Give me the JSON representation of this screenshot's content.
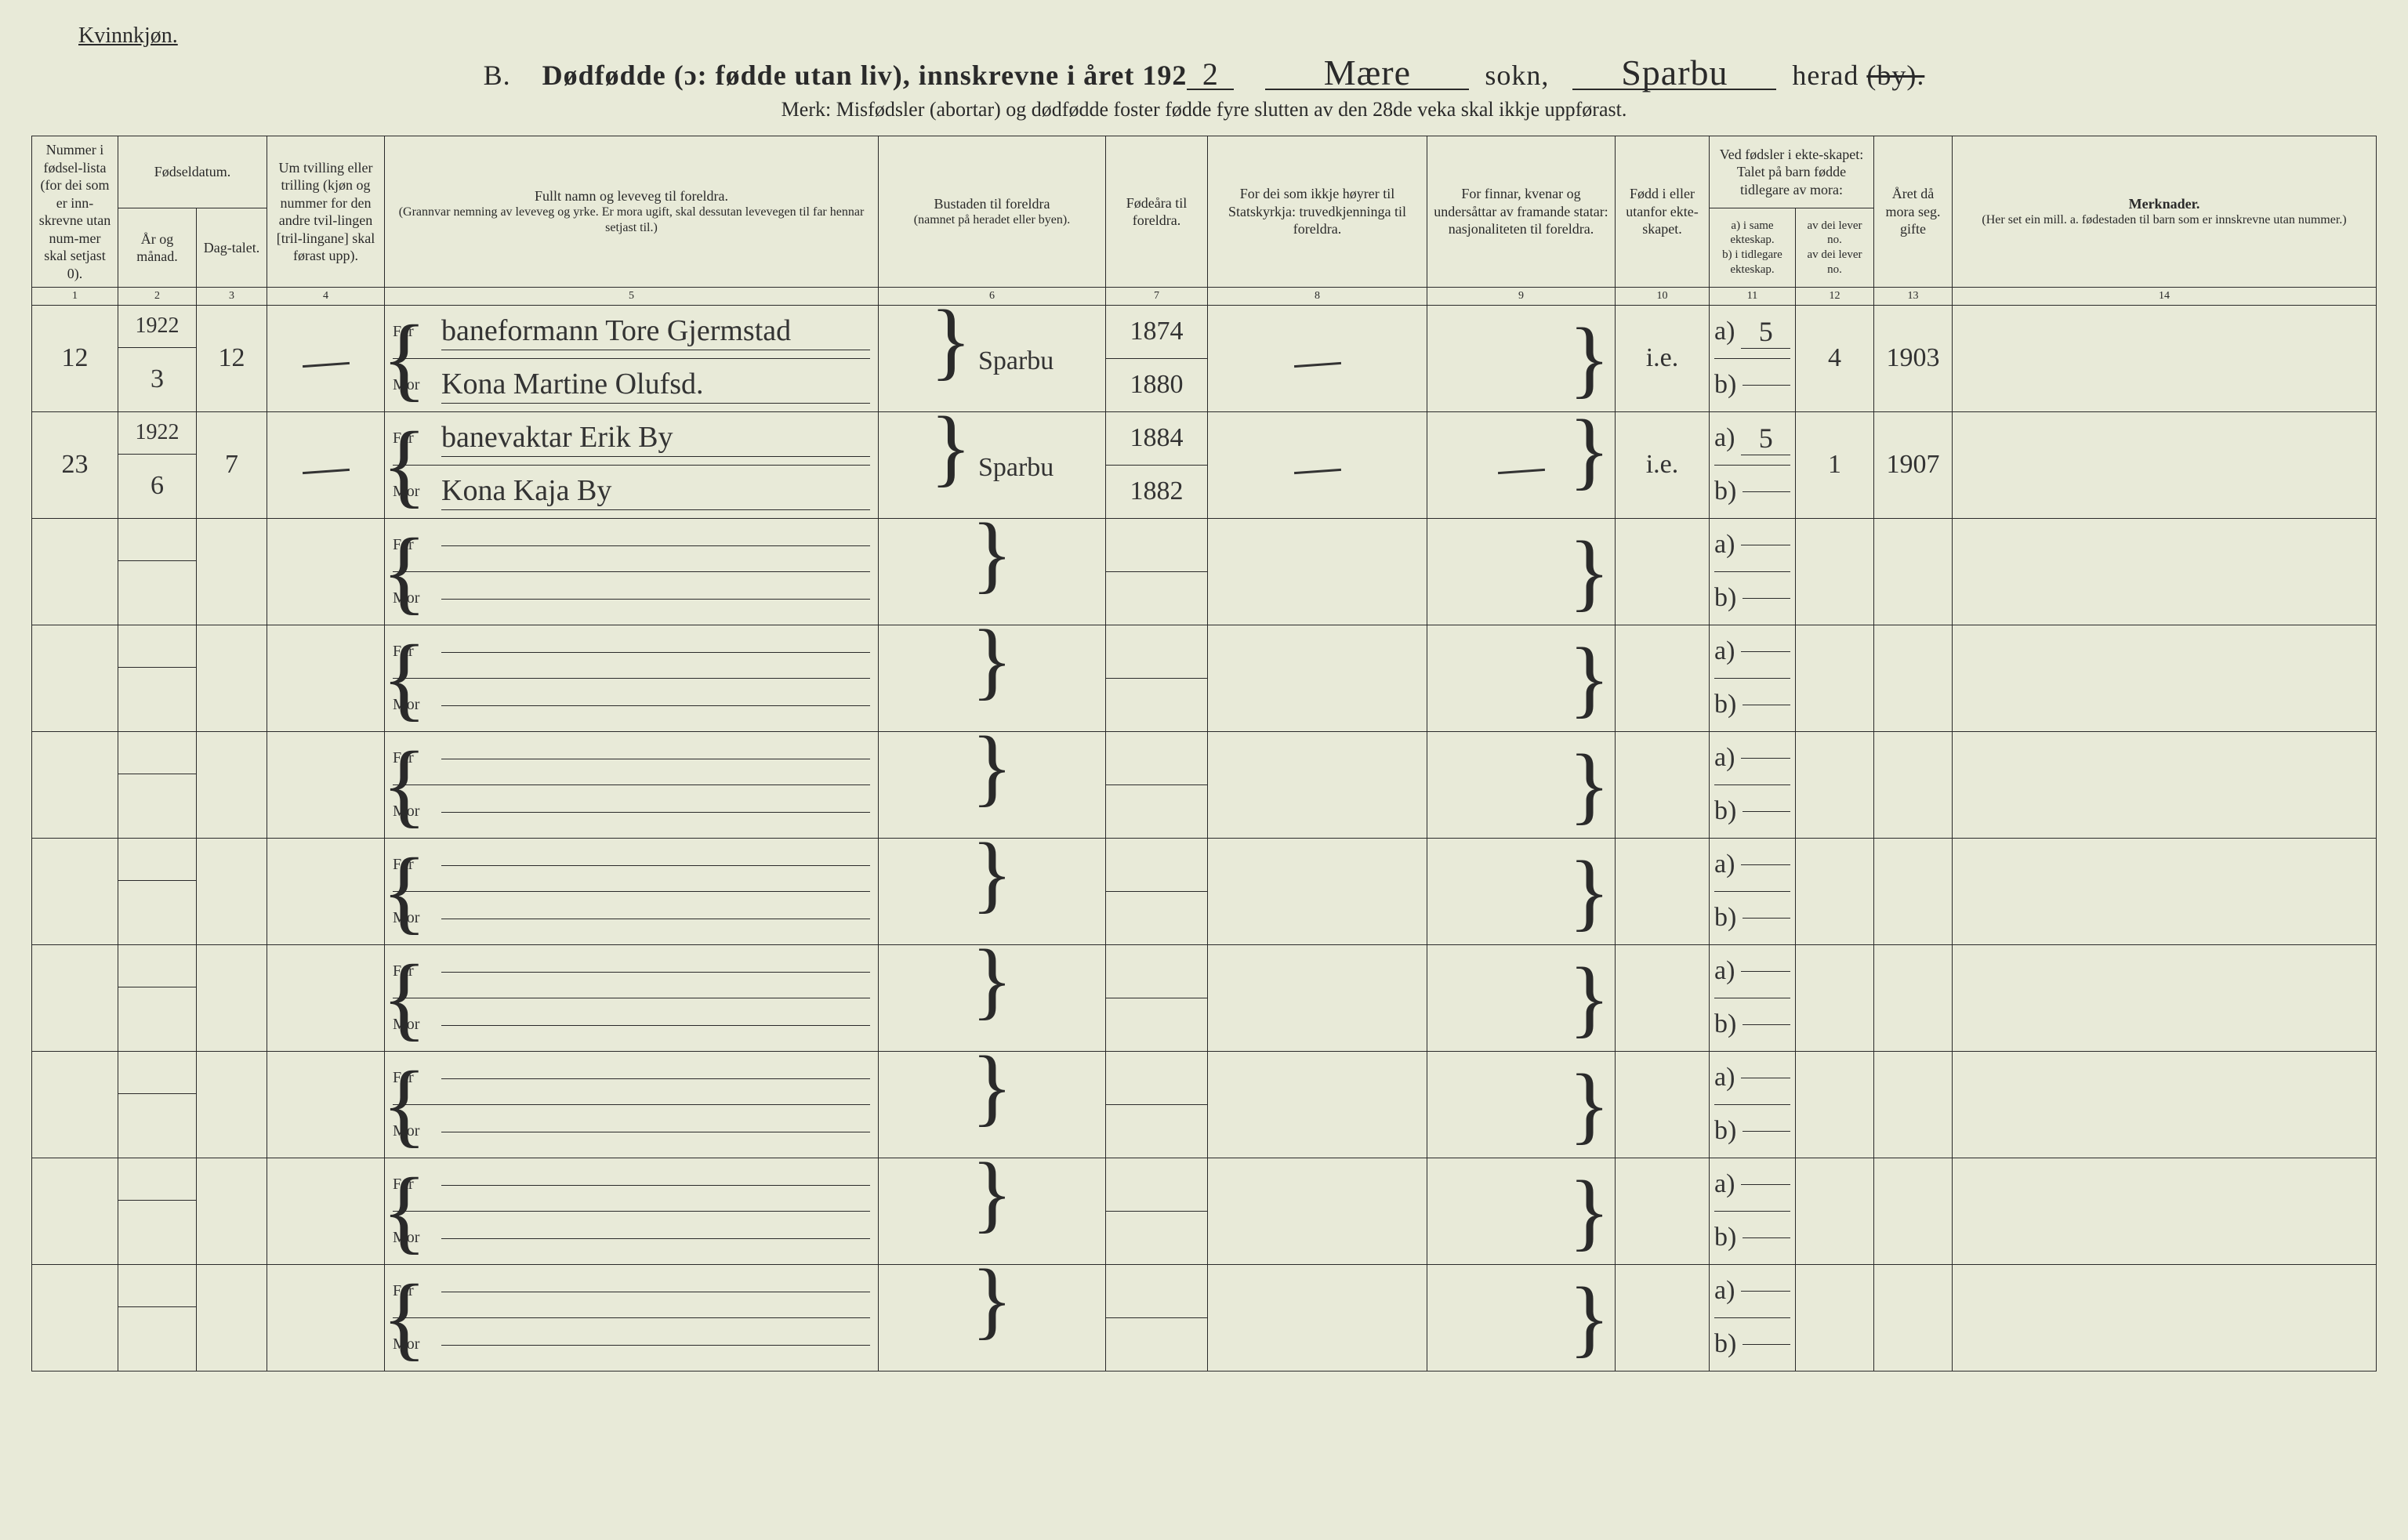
{
  "header": {
    "gender_label": "Kvinnkjøn.",
    "section_letter": "B.",
    "title_lead": "Dødfødde (ɔ: fødde utan liv), innskrevne i året 192",
    "year_suffix": "2",
    "sokn_label": "sokn,",
    "sokn_value": "Mære",
    "herad_label": "herad",
    "herad_value": "Sparbu",
    "by_struck": "(by).",
    "subtitle": "Merk:  Misfødsler (abortar) og dødfødde foster fødde fyre slutten av den 28de veka skal ikkje uppførast."
  },
  "columns": {
    "c1": "Nummer i fødsel-lista (for dei som er inn-skrevne utan num-mer skal setjast 0).",
    "c2_group": "Fødseldatum.",
    "c2": "År og månad.",
    "c3": "Dag-talet.",
    "c4": "Um tvilling eller trilling (kjøn og nummer for den andre tvil-lingen [tril-lingane] skal førast upp).",
    "c5_title": "Fullt namn og leveveg til foreldra.",
    "c5_sub": "(Grannvar nemning av leveveg og yrke.\nEr mora ugift, skal dessutan levevegen til far hennar setjast til.)",
    "c6_title": "Bustaden til foreldra",
    "c6_sub": "(namnet på heradet eller byen).",
    "c7": "Fødeåra til foreldra.",
    "c8": "For dei som ikkje høyrer til Statskyrkja: truvedkjenninga til foreldra.",
    "c9": "For finnar, kvenar og undersåttar av framande statar: nasjonaliteten til foreldra.",
    "c10": "Fødd i eller utanfor ekte-skapet.",
    "c11_group": "Ved fødsler i ekte-skapet: Talet på barn fødde tidlegare av mora:",
    "c11": "a) i same ekteskap.\nb) i tidlegare ekteskap.",
    "c12": "av dei lever no.\nav dei lever no.",
    "c13": "Året då mora seg. gifte",
    "c14_title": "Merknader.",
    "c14_sub": "(Her set ein mill. a. fødestaden til barn som er innskrevne utan nummer.)",
    "colnums": [
      "1",
      "2",
      "3",
      "4",
      "5",
      "6",
      "7",
      "8",
      "9",
      "10",
      "11",
      "12",
      "13",
      "14"
    ]
  },
  "rows": [
    {
      "num": "12",
      "year": "1922",
      "month": "3",
      "day": "12",
      "twin": "—",
      "far": "baneformann Tore Gjermstad",
      "mor": "Kona Martine Olufsd.",
      "bustad": "Sparbu",
      "fodeaar_far": "1874",
      "fodeaar_mor": "1880",
      "stats": "—",
      "nasj": "",
      "ekte": "i.e.",
      "a": "5",
      "lever": "4",
      "gifteaar": "1903"
    },
    {
      "num": "23",
      "year": "1922",
      "month": "6",
      "day": "7",
      "twin": "—",
      "far": "banevaktar Erik By",
      "mor": "Kona Kaja By",
      "bustad": "Sparbu",
      "fodeaar_far": "1884",
      "fodeaar_mor": "1882",
      "stats": "—",
      "nasj": "—",
      "ekte": "i.e.",
      "a": "5",
      "lever": "1",
      "gifteaar": "1907"
    },
    {},
    {},
    {},
    {},
    {},
    {},
    {},
    {}
  ],
  "labels": {
    "far": "Far",
    "mor": "Mor",
    "a": "a)",
    "b": "b)"
  },
  "style": {
    "bg": "#e8ead8",
    "ink": "#2a2a2a",
    "hand_ink": "#333333",
    "header_fontsize": 36,
    "cell_fontsize": 34,
    "thead_fontsize": 18
  }
}
